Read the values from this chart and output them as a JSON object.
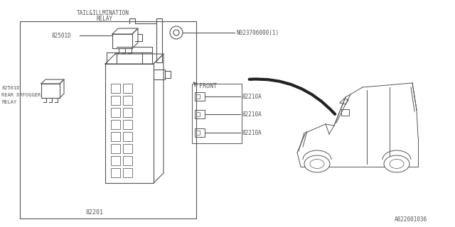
{
  "background_color": "#ffffff",
  "line_color": "#555555",
  "text_color": "#555555",
  "label_N023": "N023706000(1)",
  "label_82201": "82201",
  "label_82210A": "82210A",
  "label_FRONT": "FRONT",
  "ref_code": "A822001036",
  "fig_width": 6.4,
  "fig_height": 3.2,
  "dpi": 100
}
